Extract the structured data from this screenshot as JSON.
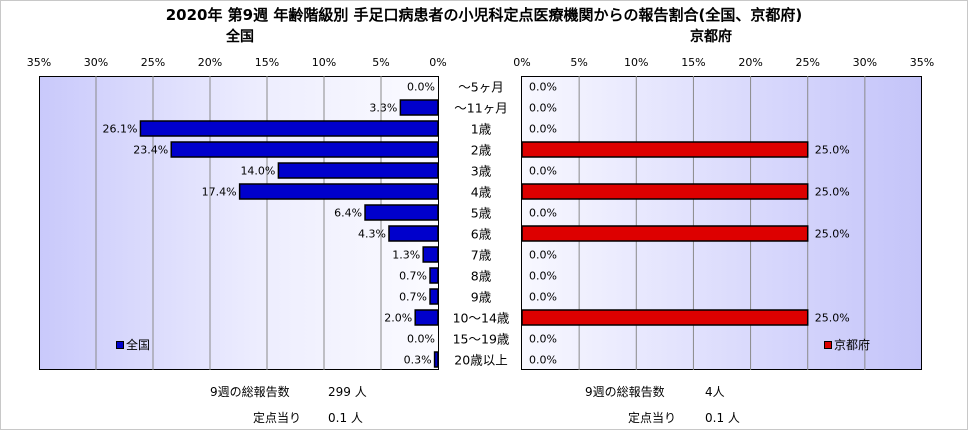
{
  "title": "2020年 第9週 年齢階級別 手足口病患者の小児科定点医療機関からの報告割合(全国、京都府)",
  "chart_data": [
    {
      "type": "bar",
      "title": "全国",
      "orientation": "horizontal-reversed",
      "categories": [
        "〜5ヶ月",
        "〜11ヶ月",
        "1歳",
        "2歳",
        "3歳",
        "4歳",
        "5歳",
        "6歳",
        "7歳",
        "8歳",
        "9歳",
        "10〜14歳",
        "15〜19歳",
        "20歳以上"
      ],
      "series": [
        {
          "name": "全国",
          "values": [
            0.0,
            3.3,
            26.1,
            23.4,
            14.0,
            17.4,
            6.4,
            4.3,
            1.3,
            0.7,
            0.7,
            2.0,
            0.0,
            0.3
          ],
          "color": "#0000cc"
        }
      ],
      "value_labels": [
        "0.0%",
        "3.3%",
        "26.1%",
        "23.4%",
        "14.0%",
        "17.4%",
        "6.4%",
        "4.3%",
        "1.3%",
        "0.7%",
        "0.7%",
        "2.0%",
        "0.0%",
        "0.3%"
      ],
      "xlim": [
        0,
        35
      ],
      "ticks": [
        "35%",
        "30%",
        "25%",
        "20%",
        "15%",
        "10%",
        "5%",
        "0%"
      ],
      "grid": true,
      "legend": "bottom-left"
    },
    {
      "type": "bar",
      "title": "京都府",
      "orientation": "horizontal",
      "categories": [
        "〜5ヶ月",
        "〜11ヶ月",
        "1歳",
        "2歳",
        "3歳",
        "4歳",
        "5歳",
        "6歳",
        "7歳",
        "8歳",
        "9歳",
        "10〜14歳",
        "15〜19歳",
        "20歳以上"
      ],
      "series": [
        {
          "name": "京都府",
          "values": [
            0,
            0,
            0,
            25.0,
            0,
            25.0,
            0,
            25.0,
            0,
            0,
            0,
            25.0,
            0,
            0
          ],
          "color": "#dd0000"
        }
      ],
      "value_labels": [
        "0.0%",
        "0.0%",
        "0.0%",
        "25.0%",
        "0.0%",
        "25.0%",
        "0.0%",
        "25.0%",
        "0.0%",
        "0.0%",
        "0.0%",
        "25.0%",
        "0.0%",
        "0.0%"
      ],
      "xlim": [
        0,
        35
      ],
      "ticks": [
        "0%",
        "5%",
        "10%",
        "15%",
        "20%",
        "25%",
        "30%",
        "35%"
      ],
      "grid": true,
      "legend": "bottom-right"
    }
  ],
  "footer": {
    "national": {
      "total_label": "9週の総報告数",
      "total_value": "299 人",
      "per_label": "定点当り",
      "per_value": "0.1 人"
    },
    "kyoto": {
      "total_label": "9週の総報告数",
      "total_value": "4人",
      "per_label": "定点当り",
      "per_value": "0.1 人"
    }
  }
}
